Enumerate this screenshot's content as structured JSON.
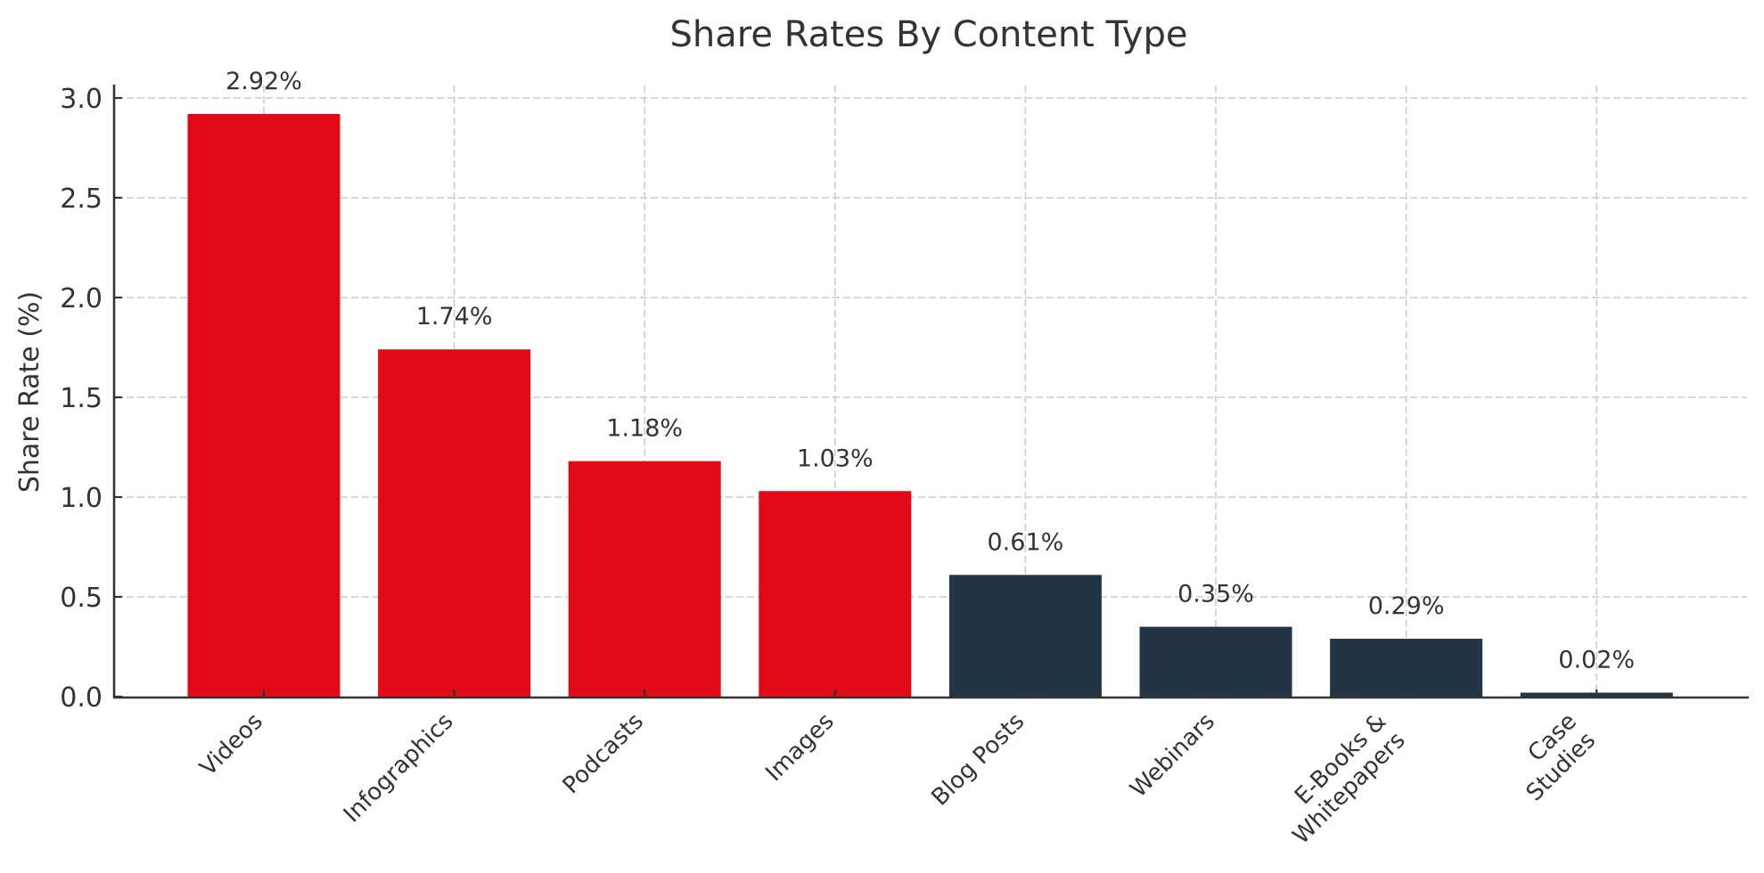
{
  "chart": {
    "title": "Share Rates By Content Type",
    "ylabel": "Share Rate (%)",
    "yticks": [
      "0.0",
      "0.5",
      "1.0",
      "1.5",
      "2.0",
      "2.5",
      "3.0"
    ],
    "bars": [
      {
        "category": "Videos",
        "lines": [
          "Videos"
        ],
        "value": 2.92,
        "label": "2.92%",
        "color": "#E30A17"
      },
      {
        "category": "Infographics",
        "lines": [
          "Infographics"
        ],
        "value": 1.74,
        "label": "1.74%",
        "color": "#E30A17"
      },
      {
        "category": "Podcasts",
        "lines": [
          "Podcasts"
        ],
        "value": 1.18,
        "label": "1.18%",
        "color": "#E30A17"
      },
      {
        "category": "Images",
        "lines": [
          "Images"
        ],
        "value": 1.03,
        "label": "1.03%",
        "color": "#E30A17"
      },
      {
        "category": "Blog Posts",
        "lines": [
          "Blog Posts"
        ],
        "value": 0.61,
        "label": "0.61%",
        "color": "#233444"
      },
      {
        "category": "Webinars",
        "lines": [
          "Webinars"
        ],
        "value": 0.35,
        "label": "0.35%",
        "color": "#233444"
      },
      {
        "category": "E-Books & Whitepapers",
        "lines": [
          "E-Books &",
          "Whitepapers"
        ],
        "value": 0.29,
        "label": "0.29%",
        "color": "#233444"
      },
      {
        "category": "Case Studies",
        "lines": [
          "Case",
          "Studies"
        ],
        "value": 0.02,
        "label": "0.02%",
        "color": "#233444"
      }
    ]
  },
  "chart_data": {
    "type": "bar",
    "title": "Share Rates By Content Type",
    "xlabel": "",
    "ylabel": "Share Rate (%)",
    "categories": [
      "Videos",
      "Infographics",
      "Podcasts",
      "Images",
      "Blog Posts",
      "Webinars",
      "E-Books & Whitepapers",
      "Case Studies"
    ],
    "values": [
      2.92,
      1.74,
      1.18,
      1.03,
      0.61,
      0.35,
      0.29,
      0.02
    ],
    "data_labels": [
      "2.92%",
      "1.74%",
      "1.18%",
      "1.03%",
      "0.61%",
      "0.35%",
      "0.29%",
      "0.02%"
    ],
    "bar_colors": [
      "#E30A17",
      "#E30A17",
      "#E30A17",
      "#E30A17",
      "#233444",
      "#233444",
      "#233444",
      "#233444"
    ],
    "ylim": [
      0,
      3.05
    ],
    "yticks": [
      0.0,
      0.5,
      1.0,
      1.5,
      2.0,
      2.5,
      3.0
    ],
    "grid": true,
    "grid_style": "dashed",
    "xtick_rotation": 45,
    "legend": null
  }
}
